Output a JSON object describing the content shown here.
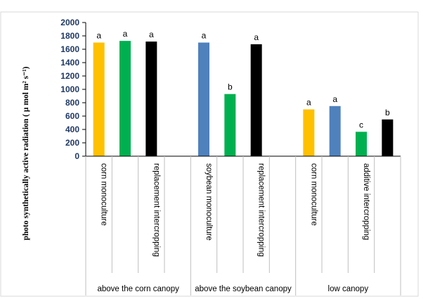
{
  "chart_data": {
    "type": "bar",
    "ylabel": "photo synthetically active radiation ( µ mol m² s⁻¹)",
    "ylim": [
      0,
      2000
    ],
    "yticks": [
      0,
      200,
      400,
      600,
      800,
      1000,
      1200,
      1400,
      1600,
      1800,
      2000
    ],
    "grid": false,
    "legend": "none",
    "colors": {
      "corn": "#FFC000",
      "additive": "#00B050",
      "replacement": "#000000",
      "soybean": "#4F81BD"
    },
    "groups": [
      {
        "label": "above the corn canopy",
        "categories": [
          "corn monoculture",
          "",
          "replacement intercropping",
          ""
        ],
        "bars": [
          {
            "slot": 0,
            "value": 1700,
            "letter": "a",
            "color_key": "corn"
          },
          {
            "slot": 1,
            "value": 1725,
            "letter": "a",
            "color_key": "additive"
          },
          {
            "slot": 2,
            "value": 1715,
            "letter": "a",
            "color_key": "replacement"
          }
        ]
      },
      {
        "label": "above the soybean canopy",
        "categories": [
          "soybean monoculture",
          "",
          "replacement intercropping",
          ""
        ],
        "bars": [
          {
            "slot": 0,
            "value": 1700,
            "letter": "a",
            "color_key": "soybean"
          },
          {
            "slot": 1,
            "value": 930,
            "letter": "b",
            "color_key": "additive"
          },
          {
            "slot": 2,
            "value": 1675,
            "letter": "a",
            "color_key": "replacement"
          }
        ]
      },
      {
        "label": "low canopy",
        "categories": [
          "corn monoculture",
          "",
          "additive intercropping",
          ""
        ],
        "bars": [
          {
            "slot": 0,
            "value": 700,
            "letter": "a",
            "color_key": "corn"
          },
          {
            "slot": 1,
            "value": 750,
            "letter": "a",
            "color_key": "soybean"
          },
          {
            "slot": 2,
            "value": 365,
            "letter": "c",
            "color_key": "additive"
          },
          {
            "slot": 3,
            "value": 550,
            "letter": "b",
            "color_key": "replacement"
          }
        ]
      }
    ]
  }
}
